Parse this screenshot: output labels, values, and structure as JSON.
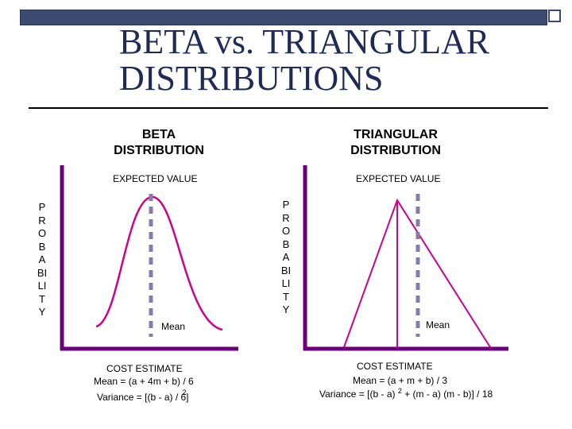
{
  "slide": {
    "title_line1": "BETA vs. TRIANGULAR",
    "title_line2": "DISTRIBUTIONS"
  },
  "beta": {
    "heading_line1": "BETA",
    "heading_line2": "DISTRIBUTION",
    "expected_label": "EXPECTED VALUE",
    "y_axis_label": "PROBABILITY",
    "mean_label": "Mean",
    "x_axis_label": "COST ESTIMATE",
    "formula_mean": "Mean = (a + 4m + b) / 6",
    "formula_variance": "Variance = [(b - a) / 6]",
    "formula_variance_exp": "2"
  },
  "triangular": {
    "heading_line1": "TRIANGULAR",
    "heading_line2": "DISTRIBUTION",
    "expected_label": "EXPECTED VALUE",
    "y_axis_label": "PROBABILITY",
    "mean_label": "Mean",
    "x_axis_label": "COST ESTIMATE",
    "formula_mean": "Mean = (a + m + b) / 3",
    "formula_variance_part1": "Variance = [(b - a)",
    "formula_variance_exp": "2",
    "formula_variance_part2": "+ (m - a) (m - b)] / 18"
  },
  "colors": {
    "axis": "#6a007a",
    "title": "#1f2a55",
    "dash": "#8a7ca0",
    "bar": "#3d4a70"
  }
}
